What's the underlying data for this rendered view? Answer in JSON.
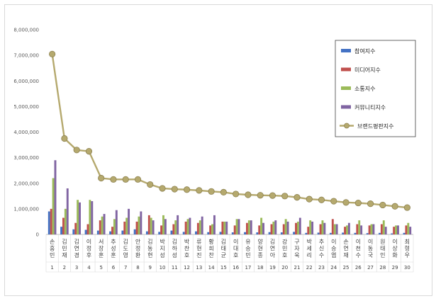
{
  "chart_data": {
    "type": "bar",
    "title": "",
    "xlabel": "",
    "ylabel": "",
    "ylim": [
      0,
      8000000
    ],
    "yticks": [
      "0",
      "1,000,000",
      "2,000,000",
      "3,000,000",
      "4,000,000",
      "5,000,000",
      "6,000,000",
      "7,000,000",
      "8,000,000"
    ],
    "grid": false,
    "legend_position": "top-right",
    "categories": [
      "손흥민",
      "김민재",
      "김연경",
      "이정후",
      "서장훈",
      "추성훈",
      "김도영",
      "안정환",
      "김동현",
      "박지성",
      "김하성",
      "박찬호",
      "류현진",
      "황희찬",
      "김태균",
      "이대호",
      "유승민",
      "양현종",
      "김연아",
      "강민호",
      "구자욱",
      "박세리",
      "추신수",
      "이승엽",
      "손연재",
      "이천수",
      "이동국",
      "원태인",
      "이상화",
      "최형우"
    ],
    "ranks": [
      "1",
      "2",
      "3",
      "4",
      "5",
      "6",
      "7",
      "8",
      "9",
      "10",
      "11",
      "12",
      "13",
      "14",
      "15",
      "16",
      "17",
      "18",
      "19",
      "20",
      "21",
      "22",
      "23",
      "24",
      "25",
      "26",
      "27",
      "28",
      "29",
      "30"
    ],
    "series": [
      {
        "name": "참여지수",
        "type": "bar",
        "color": "#4472c4",
        "values": [
          900000,
          300000,
          200000,
          180000,
          150000,
          120000,
          150000,
          200000,
          120000,
          100000,
          150000,
          100000,
          120000,
          90000,
          100000,
          80000,
          90000,
          80000,
          90000,
          80000,
          100000,
          60000,
          70000,
          60000,
          70000,
          60000,
          50000,
          60000,
          40000,
          60000
        ]
      },
      {
        "name": "미디어지수",
        "type": "bar",
        "color": "#c0504d",
        "values": [
          1000000,
          650000,
          450000,
          400000,
          550000,
          300000,
          500000,
          500000,
          750000,
          350000,
          400000,
          500000,
          450000,
          350000,
          500000,
          350000,
          450000,
          350000,
          400000,
          400000,
          450000,
          300000,
          400000,
          600000,
          300000,
          400000,
          350000,
          400000,
          300000,
          350000
        ]
      },
      {
        "name": "소통지수",
        "type": "bar",
        "color": "#9bbb59",
        "values": [
          2200000,
          1000000,
          1350000,
          1350000,
          700000,
          600000,
          650000,
          700000,
          650000,
          750000,
          550000,
          600000,
          550000,
          400000,
          500000,
          600000,
          550000,
          650000,
          500000,
          600000,
          500000,
          550000,
          550000,
          400000,
          350000,
          550000,
          400000,
          550000,
          350000,
          450000
        ]
      },
      {
        "name": "커뮤니티지수",
        "type": "bar",
        "color": "#8064a2",
        "values": [
          2900000,
          1800000,
          1250000,
          1300000,
          800000,
          950000,
          1000000,
          900000,
          550000,
          600000,
          750000,
          650000,
          700000,
          750000,
          500000,
          600000,
          550000,
          450000,
          550000,
          500000,
          650000,
          500000,
          450000,
          400000,
          450000,
          350000,
          400000,
          300000,
          350000,
          300000
        ]
      },
      {
        "name": "브랜드평판지수",
        "type": "line",
        "color": "#b5a96e",
        "values": [
          7050000,
          3750000,
          3300000,
          3250000,
          2200000,
          2150000,
          2150000,
          2150000,
          1950000,
          1800000,
          1770000,
          1750000,
          1720000,
          1680000,
          1650000,
          1580000,
          1550000,
          1530000,
          1520000,
          1500000,
          1450000,
          1380000,
          1350000,
          1300000,
          1250000,
          1230000,
          1200000,
          1150000,
          1100000,
          1050000
        ]
      }
    ]
  }
}
